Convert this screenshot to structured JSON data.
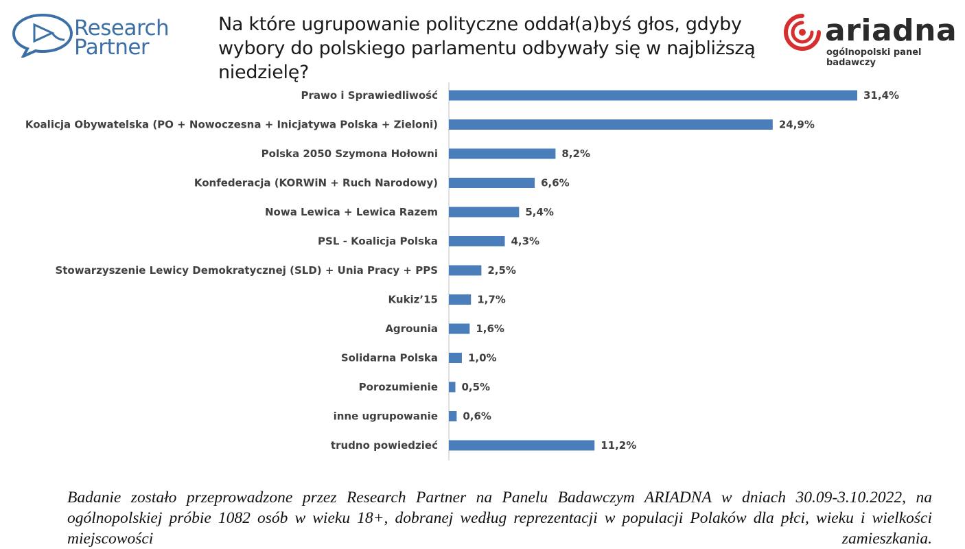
{
  "header": {
    "logo_left": {
      "line1": "Research",
      "line2": "Partner",
      "icon": "speech-bubble-pie-icon"
    },
    "question": "Na które ugrupowanie polityczne oddał(a)byś głos, gdyby wybory do polskiego parlamentu odbywały się w najbliższą niedzielę?",
    "logo_right": {
      "wordmark": "ariadna",
      "tagline": "ogólnopolski panel badawczy",
      "icon": "spiral-target-icon"
    }
  },
  "colors": {
    "bar": "#4a7ebb",
    "brand_blue": "#3c6fa6",
    "brand_red": "#d62f2f"
  },
  "chart_data": {
    "type": "bar",
    "orientation": "horizontal",
    "categories": [
      "Prawo i Sprawiedliwość",
      "Koalicja Obywatelska (PO + Nowoczesna + Inicjatywa Polska + Zieloni)",
      "Polska 2050 Szymona Hołowni",
      "Konfederacja (KORWiN + Ruch Narodowy)",
      "Nowa Lewica + Lewica Razem",
      "PSL - Koalicja Polska",
      "Stowarzyszenie Lewicy Demokratycznej (SLD) + Unia Pracy + PPS",
      "Kukiz’15",
      "Agrounia",
      "Solidarna Polska",
      "Porozumienie",
      "inne ugrupowanie",
      "trudno powiedzieć"
    ],
    "values": [
      31.4,
      24.9,
      8.2,
      6.6,
      5.4,
      4.3,
      2.5,
      1.7,
      1.6,
      1.0,
      0.5,
      0.6,
      11.2
    ],
    "value_labels": [
      "31,4%",
      "24,9%",
      "8,2%",
      "6,6%",
      "5,4%",
      "4,3%",
      "2,5%",
      "1,7%",
      "1,6%",
      "1,0%",
      "0,5%",
      "0,6%",
      "11,2%"
    ],
    "unit": "%",
    "xlim": [
      0,
      33
    ],
    "grid": false,
    "legend": "none"
  },
  "footnote": "Badanie zostało przeprowadzone przez Research Partner na Panelu Badawczym ARIADNA w dniach 30.09-3.10.2022, na ogólnopolskiej próbie 1082 osób w wieku 18+, dobranej według reprezentacji w populacji Polaków dla płci, wieku i wielkości miejscowości zamieszkania."
}
